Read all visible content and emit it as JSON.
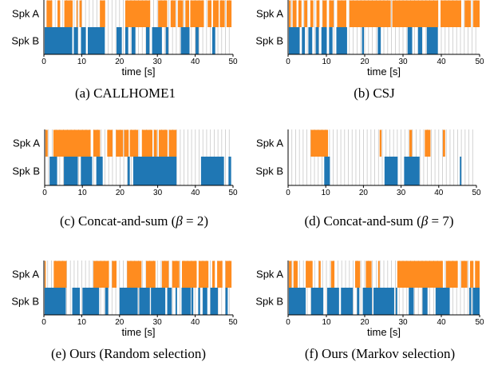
{
  "colors": {
    "spk_a": "#ff8c1f",
    "spk_b": "#1f77b4",
    "gridline": "#c8c8c8",
    "axis": "#000000"
  },
  "chart_data": [
    {
      "type": "timeline",
      "caption": "(a) CALLHOME1",
      "xlabel": "time [s]",
      "xlim": [
        0,
        50
      ],
      "xticks": [
        0,
        10,
        20,
        30,
        40,
        50
      ],
      "rows": [
        "Spk A",
        "Spk B"
      ],
      "grid_interval": 1,
      "spk_a": [
        [
          0.7,
          2.2
        ],
        [
          3.6,
          4.3
        ],
        [
          5.4,
          7.6
        ],
        [
          8.6,
          8.9
        ],
        [
          9.4,
          10.0
        ],
        [
          14.8,
          16.2
        ],
        [
          21.5,
          28.1
        ],
        [
          30.2,
          32.6
        ],
        [
          33.5,
          34.8
        ],
        [
          35.4,
          36.8
        ],
        [
          37.4,
          38.4
        ],
        [
          38.7,
          42.3
        ],
        [
          43.3,
          44.3
        ],
        [
          44.7,
          46.2
        ],
        [
          46.5,
          47.8
        ],
        [
          48.3,
          49.6
        ]
      ],
      "spk_b": [
        [
          0.2,
          7.5
        ],
        [
          7.9,
          9.0
        ],
        [
          9.8,
          11.1
        ],
        [
          11.6,
          16.1
        ],
        [
          19.2,
          20.6
        ],
        [
          21.5,
          22.3
        ],
        [
          23.2,
          24.2
        ],
        [
          27.0,
          27.9
        ],
        [
          28.6,
          31.2
        ],
        [
          32.2,
          32.9
        ],
        [
          36.2,
          38.5
        ],
        [
          40.1,
          40.9
        ],
        [
          44.5,
          45.3
        ]
      ]
    },
    {
      "type": "timeline",
      "caption": "(b) CSJ",
      "xlabel": "time [s]",
      "xlim": [
        0,
        50
      ],
      "xticks": [
        0,
        10,
        20,
        30,
        40,
        50
      ],
      "rows": [
        "Spk A",
        "Spk B"
      ],
      "grid_interval": 1,
      "spk_a": [
        [
          0.2,
          0.7
        ],
        [
          1.2,
          2.2
        ],
        [
          2.7,
          3.5
        ],
        [
          4.2,
          5.0
        ],
        [
          5.8,
          6.6
        ],
        [
          7.4,
          8.2
        ],
        [
          9.0,
          10.1
        ],
        [
          10.7,
          11.9
        ],
        [
          12.8,
          15.2
        ],
        [
          16.0,
          26.8
        ],
        [
          27.2,
          39.2
        ],
        [
          39.8,
          45.2
        ],
        [
          46.1,
          47.7
        ],
        [
          48.3,
          50.0
        ]
      ],
      "spk_b": [
        [
          0.2,
          3.0
        ],
        [
          3.6,
          4.4
        ],
        [
          5.3,
          6.3
        ],
        [
          7.2,
          8.0
        ],
        [
          8.7,
          10.1
        ],
        [
          10.7,
          11.6
        ],
        [
          12.6,
          15.4
        ],
        [
          19.3,
          19.8
        ],
        [
          23.4,
          24.2
        ],
        [
          31.2,
          32.4
        ],
        [
          33.9,
          35.0
        ],
        [
          36.2,
          39.1
        ]
      ]
    },
    {
      "type": "timeline",
      "caption": "(c) Concat-and-sum (β = 2)",
      "xlabel": "",
      "xlim": [
        0,
        50
      ],
      "xticks": [
        0,
        10,
        20,
        30,
        40,
        50
      ],
      "rows": [
        "Spk A",
        "Spk B"
      ],
      "grid_interval": 1,
      "spk_a": [
        [
          0.2,
          0.8
        ],
        [
          2.3,
          12.2
        ],
        [
          12.9,
          14.7
        ],
        [
          16.6,
          18.0
        ],
        [
          18.9,
          20.8
        ],
        [
          21.1,
          22.3
        ],
        [
          22.6,
          24.8
        ],
        [
          25.8,
          28.6
        ],
        [
          29.0,
          29.8
        ],
        [
          30.3,
          32.6
        ],
        [
          33.0,
          35.0
        ]
      ],
      "spk_b": [
        [
          1.3,
          3.3
        ],
        [
          5.1,
          8.8
        ],
        [
          9.6,
          12.6
        ],
        [
          13.7,
          15.4
        ],
        [
          22.0,
          22.6
        ],
        [
          23.5,
          35.0
        ],
        [
          41.5,
          47.6
        ],
        [
          48.8,
          49.5
        ]
      ]
    },
    {
      "type": "timeline",
      "caption": "(d) Concat-and-sum (β = 7)",
      "xlabel": "",
      "xlim": [
        0,
        50
      ],
      "xticks": [
        0,
        10,
        20,
        30,
        40,
        50
      ],
      "rows": [
        "Spk A",
        "Spk B"
      ],
      "grid_interval": 1,
      "spk_a": [
        [
          6.0,
          10.6
        ],
        [
          24.3,
          24.8
        ],
        [
          32.2,
          32.9
        ],
        [
          36.3,
          37.8
        ],
        [
          41.1,
          41.7
        ]
      ],
      "spk_b": [
        [
          9.6,
          11.1
        ],
        [
          25.6,
          29.1
        ],
        [
          30.8,
          34.9
        ],
        [
          45.6,
          46.0
        ]
      ]
    },
    {
      "type": "timeline",
      "caption": "(e) Ours (Random selection)",
      "xlabel": "time [s]",
      "xlim": [
        0,
        50
      ],
      "xticks": [
        0,
        10,
        20,
        30,
        40,
        50
      ],
      "rows": [
        "Spk A",
        "Spk B"
      ],
      "grid_interval": 1,
      "spk_a": [
        [
          0.2,
          0.5
        ],
        [
          2.6,
          6.0
        ],
        [
          13.1,
          17.2
        ],
        [
          18.0,
          19.2
        ],
        [
          22.0,
          25.8
        ],
        [
          27.0,
          29.5
        ],
        [
          31.2,
          33.0
        ],
        [
          33.9,
          35.8
        ],
        [
          36.5,
          40.4
        ],
        [
          40.9,
          43.5
        ],
        [
          44.5,
          45.2
        ],
        [
          45.8,
          47.2
        ],
        [
          48.0,
          49.6
        ]
      ],
      "spk_b": [
        [
          0.2,
          5.8
        ],
        [
          7.5,
          9.5
        ],
        [
          10.2,
          14.6
        ],
        [
          16.2,
          17.0
        ],
        [
          20.0,
          24.8
        ],
        [
          25.2,
          28.0
        ],
        [
          28.3,
          32.1
        ],
        [
          32.6,
          33.8
        ],
        [
          34.8,
          35.2
        ],
        [
          36.4,
          38.8
        ],
        [
          39.0,
          39.5
        ],
        [
          40.8,
          41.3
        ],
        [
          42.0,
          43.2
        ],
        [
          44.0,
          46.0
        ],
        [
          48.0,
          48.6
        ]
      ]
    },
    {
      "type": "timeline",
      "caption": "(f) Ours (Markov selection)",
      "xlabel": "time [s]",
      "xlim": [
        0,
        50
      ],
      "xticks": [
        0,
        10,
        20,
        30,
        40,
        50
      ],
      "rows": [
        "Spk A",
        "Spk B"
      ],
      "grid_interval": 1,
      "spk_a": [
        [
          0.2,
          0.9
        ],
        [
          1.4,
          2.5
        ],
        [
          4.6,
          6.4
        ],
        [
          8.0,
          8.5
        ],
        [
          11.2,
          12.1
        ],
        [
          17.5,
          18.8
        ],
        [
          20.3,
          21.8
        ],
        [
          23.5,
          23.9
        ],
        [
          28.5,
          40.4
        ],
        [
          41.2,
          44.3
        ],
        [
          45.2,
          46.8
        ],
        [
          47.5,
          48.4
        ],
        [
          48.8,
          50.0
        ]
      ],
      "spk_b": [
        [
          0.2,
          4.6
        ],
        [
          6.0,
          9.2
        ],
        [
          10.2,
          13.3
        ],
        [
          13.8,
          16.9
        ],
        [
          18.0,
          18.6
        ],
        [
          19.5,
          21.9
        ],
        [
          22.3,
          27.7
        ],
        [
          28.1,
          28.5
        ],
        [
          31.5,
          32.8
        ],
        [
          35.1,
          36.4
        ],
        [
          38.5,
          42.2
        ],
        [
          47.3,
          47.8
        ],
        [
          48.2,
          50.0
        ]
      ]
    }
  ]
}
